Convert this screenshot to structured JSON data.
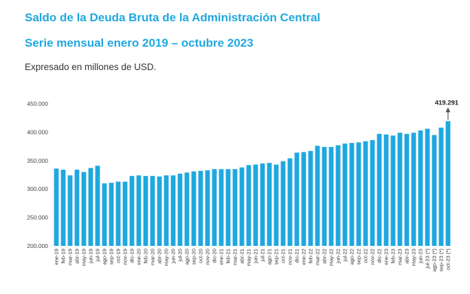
{
  "header": {
    "title": "Saldo de la Deuda Bruta de la Administración Central",
    "subtitle": "Serie mensual enero 2019 – octubre 2023",
    "note": "Expresado en millones de USD."
  },
  "chart_data": {
    "type": "bar",
    "title": "Saldo de la Deuda Bruta de la Administración Central",
    "subtitle": "Serie mensual enero 2019 – octubre 2023",
    "ylabel": "",
    "xlabel": "",
    "ylim": [
      200000,
      450000
    ],
    "yticks": [
      200000,
      250000,
      300000,
      350000,
      400000,
      450000
    ],
    "ytick_labels": [
      "200.000",
      "250.000",
      "300.000",
      "350.000",
      "400.000",
      "450.000"
    ],
    "grid": false,
    "legend": "none",
    "bar_color": "#1fa8e0",
    "categories": [
      "ene-19",
      "feb-19",
      "mar-19",
      "abr-19",
      "may-19",
      "jun-19",
      "jul-19",
      "ago-19",
      "sep-19",
      "oct-19",
      "nov-19",
      "dic-19",
      "ene-20",
      "feb-20",
      "mar-20",
      "abr-20",
      "may-20",
      "jun-20",
      "jul-20",
      "ago-20",
      "sep-20",
      "oct-20",
      "nov-20",
      "dic-20",
      "ene-21",
      "feb-21",
      "mar-21",
      "abr-21",
      "may-21",
      "jun-21",
      "jul-21",
      "ago-21",
      "sep-21",
      "oct-21",
      "nov-21",
      "dic-21",
      "ene-22",
      "feb-22",
      "mar-22",
      "abr-22",
      "may-22",
      "jun-22",
      "jul-22",
      "ago-22",
      "sep-22",
      "oct-22",
      "nov-22",
      "dic-22",
      "ene-23",
      "feb-23",
      "mar-23",
      "abr-23",
      "may-23",
      "jun-23",
      "jul-23 (*)",
      "ago-23 (*)",
      "sep-23 (*)",
      "oct-23 (*)"
    ],
    "values": [
      336000,
      334000,
      324000,
      334000,
      330000,
      337000,
      341000,
      310000,
      311000,
      313000,
      313000,
      323000,
      324000,
      323000,
      323000,
      322000,
      324000,
      324000,
      327000,
      329000,
      331000,
      332000,
      333000,
      335000,
      335000,
      335000,
      335000,
      338000,
      342000,
      343000,
      345000,
      346000,
      343000,
      349000,
      354000,
      364000,
      365000,
      367000,
      376000,
      374000,
      374000,
      377000,
      380000,
      381000,
      382000,
      384000,
      386000,
      397000,
      396000,
      394000,
      399000,
      397000,
      399000,
      403000,
      406000,
      395000,
      408000,
      419291
    ],
    "annotations": [
      {
        "category": "oct-23 (*)",
        "text": "419.291",
        "arrow": "up"
      }
    ]
  }
}
